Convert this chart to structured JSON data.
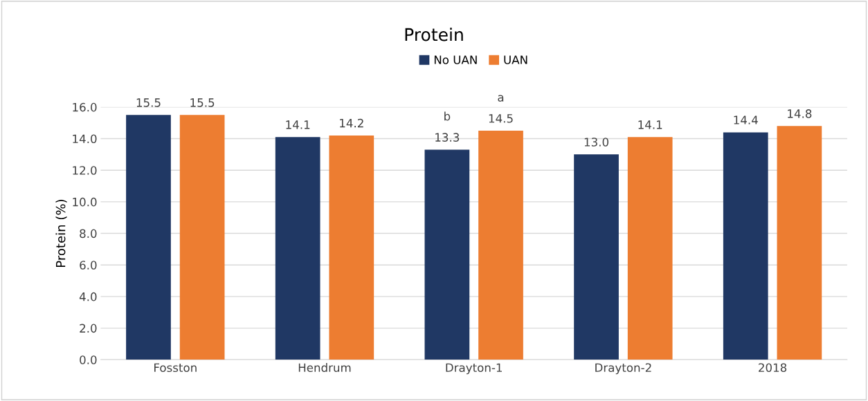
{
  "chart_data": {
    "type": "bar",
    "title": "Protein",
    "ylabel": "Protein (%)",
    "categories": [
      "Fosston",
      "Hendrum",
      "Drayton-1",
      "Drayton-2",
      "2018"
    ],
    "series": [
      {
        "name": "No UAN",
        "color": "#203864",
        "values": [
          15.5,
          14.1,
          13.3,
          13.0,
          14.4
        ],
        "value_labels": [
          "15.5",
          "14.1",
          "13.3",
          "13.0",
          "14.4"
        ]
      },
      {
        "name": "UAN",
        "color": "#ed7d31",
        "values": [
          15.5,
          14.2,
          14.5,
          14.1,
          14.8
        ],
        "value_labels": [
          "15.5",
          "14.2",
          "14.5",
          "14.1",
          "14.8"
        ]
      }
    ],
    "annotations": [
      "b",
      "a"
    ],
    "ylim": [
      0,
      16
    ],
    "yticks": [
      {
        "value": 0,
        "label": "0.0"
      },
      {
        "value": 2,
        "label": "2.0"
      },
      {
        "value": 4,
        "label": "4.0"
      },
      {
        "value": 6,
        "label": "6.0"
      },
      {
        "value": 8,
        "label": "8.0"
      },
      {
        "value": 10,
        "label": "10.0"
      },
      {
        "value": 12,
        "label": "12.0"
      },
      {
        "value": 14,
        "label": "14.0"
      },
      {
        "value": 16,
        "label": "16.0"
      }
    ],
    "grid": "y",
    "legend": "top"
  }
}
